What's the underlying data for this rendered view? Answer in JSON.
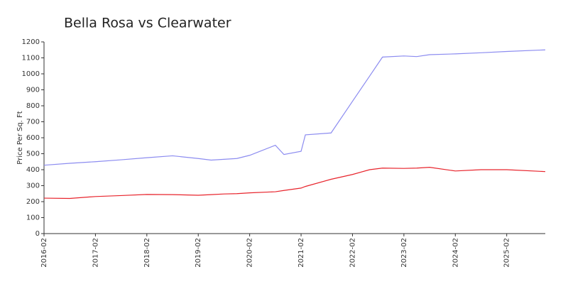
{
  "chart_data": {
    "type": "line",
    "title": "Bella Rosa vs Clearwater",
    "y_label": "Price Per Sq. Ft",
    "x": [
      "2016-02",
      "2016-08",
      "2017-02",
      "2017-08",
      "2018-02",
      "2018-08",
      "2019-02",
      "2019-05",
      "2019-08",
      "2019-11",
      "2020-02",
      "2020-08",
      "2020-10",
      "2021-02",
      "2021-03",
      "2021-09",
      "2022-02",
      "2022-06",
      "2022-09",
      "2023-02",
      "2023-05",
      "2023-08",
      "2024-02",
      "2024-08",
      "2025-02",
      "2025-11"
    ],
    "series": [
      {
        "color": "#8c8cf0",
        "values": [
          428,
          440,
          450,
          462,
          475,
          487,
          470,
          460,
          465,
          470,
          490,
          553,
          495,
          515,
          618,
          630,
          828,
          986,
          1105,
          1112,
          1108,
          1120,
          1125,
          1132,
          1140,
          1150
        ]
      },
      {
        "color": "#e8242c",
        "values": [
          222,
          220,
          232,
          238,
          245,
          244,
          240,
          244,
          248,
          250,
          255,
          262,
          270,
          285,
          295,
          340,
          370,
          400,
          410,
          408,
          410,
          415,
          392,
          400,
          400,
          388
        ]
      }
    ],
    "xlim": [
      "2016-02",
      "2025-11"
    ],
    "xticks": [
      "2016-02",
      "2017-02",
      "2018-02",
      "2019-02",
      "2020-02",
      "2021-02",
      "2022-02",
      "2023-02",
      "2024-02",
      "2025-02"
    ],
    "ylim": [
      0,
      1200
    ],
    "yticks": [
      0,
      100,
      200,
      300,
      400,
      500,
      600,
      700,
      800,
      900,
      1000,
      1100,
      1200
    ]
  }
}
